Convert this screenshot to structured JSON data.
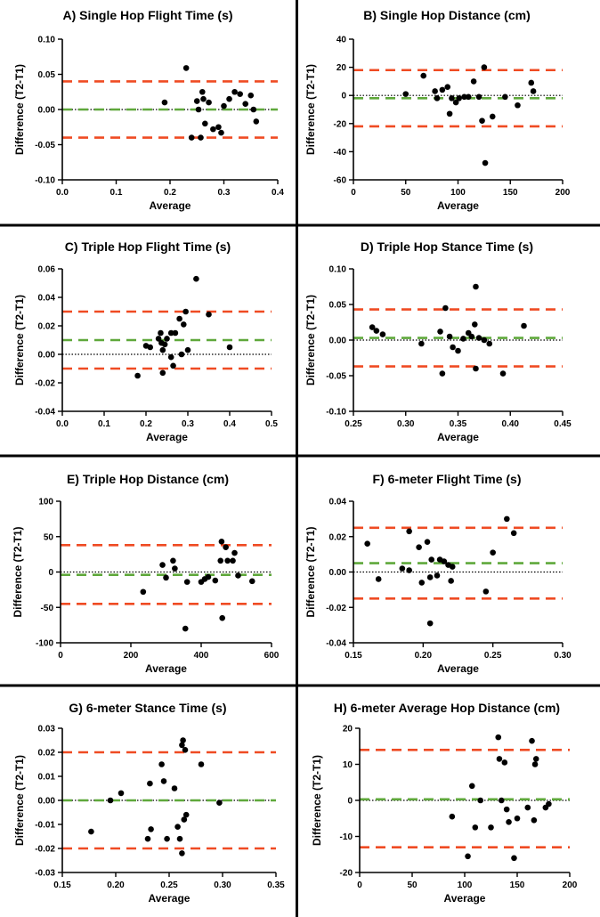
{
  "colors": {
    "limits": "#ef4b23",
    "bias": "#5fa83b",
    "zero": "#000000",
    "points": "#000000",
    "divider": "#000000"
  },
  "chart_data": [
    {
      "type": "scatter",
      "title": "A) Single Hop Flight Time (s)",
      "xlabel": "Average",
      "ylabel": "Difference (T2-T1)",
      "xlim": [
        0.0,
        0.4
      ],
      "ylim": [
        -0.1,
        0.1
      ],
      "xticks": [
        0.0,
        0.1,
        0.2,
        0.3,
        0.4
      ],
      "xtick_labels": [
        "0.0",
        "0.1",
        "0.2",
        "0.3",
        "0.4"
      ],
      "yticks": [
        -0.1,
        -0.05,
        0.0,
        0.05,
        0.1
      ],
      "ytick_labels": [
        "-0.10",
        "-0.05",
        "0.00",
        "0.05",
        "0.10"
      ],
      "bias": 0.0,
      "upper_loa": 0.04,
      "lower_loa": -0.04,
      "zero_line": true,
      "points": [
        [
          0.19,
          0.01
        ],
        [
          0.23,
          0.059
        ],
        [
          0.24,
          -0.04
        ],
        [
          0.25,
          0.012
        ],
        [
          0.253,
          0.0
        ],
        [
          0.257,
          -0.04
        ],
        [
          0.26,
          0.025
        ],
        [
          0.262,
          0.015
        ],
        [
          0.265,
          -0.02
        ],
        [
          0.272,
          0.01
        ],
        [
          0.28,
          -0.028
        ],
        [
          0.29,
          -0.025
        ],
        [
          0.295,
          -0.033
        ],
        [
          0.3,
          0.005
        ],
        [
          0.31,
          0.015
        ],
        [
          0.32,
          0.025
        ],
        [
          0.33,
          0.022
        ],
        [
          0.34,
          0.008
        ],
        [
          0.35,
          0.02
        ],
        [
          0.355,
          0.0
        ],
        [
          0.36,
          -0.017
        ]
      ]
    },
    {
      "type": "scatter",
      "title": "B) Single Hop Distance (cm)",
      "xlabel": "Average",
      "ylabel": "Difference (T2-T1)",
      "xlim": [
        0,
        200
      ],
      "ylim": [
        -60,
        40
      ],
      "xticks": [
        0,
        50,
        100,
        150,
        200
      ],
      "xtick_labels": [
        "0",
        "50",
        "100",
        "150",
        "200"
      ],
      "yticks": [
        -60,
        -40,
        -20,
        0,
        20,
        40
      ],
      "ytick_labels": [
        "-60",
        "-40",
        "-20",
        "0",
        "20",
        "40"
      ],
      "bias": -2,
      "upper_loa": 18,
      "lower_loa": -22,
      "zero_line": true,
      "points": [
        [
          50,
          1
        ],
        [
          67,
          14
        ],
        [
          78,
          3
        ],
        [
          80,
          -2
        ],
        [
          85,
          4
        ],
        [
          90,
          6
        ],
        [
          92,
          -13
        ],
        [
          94,
          -2
        ],
        [
          98,
          -5
        ],
        [
          101,
          -2
        ],
        [
          106,
          -1
        ],
        [
          110,
          -1
        ],
        [
          115,
          10
        ],
        [
          120,
          -1
        ],
        [
          123,
          -18
        ],
        [
          125,
          20
        ],
        [
          126,
          -48
        ],
        [
          133,
          -15
        ],
        [
          145,
          -1
        ],
        [
          157,
          -7
        ],
        [
          170,
          9
        ],
        [
          172,
          3
        ]
      ]
    },
    {
      "type": "scatter",
      "title": "C) Triple Hop Flight Time (s)",
      "xlabel": "Average",
      "ylabel": "Difference (T2-T1)",
      "xlim": [
        0.0,
        0.5
      ],
      "ylim": [
        -0.04,
        0.06
      ],
      "xticks": [
        0.0,
        0.1,
        0.2,
        0.3,
        0.4,
        0.5
      ],
      "xtick_labels": [
        "0.0",
        "0.1",
        "0.2",
        "0.3",
        "0.4",
        "0.5"
      ],
      "yticks": [
        -0.04,
        -0.02,
        0.0,
        0.02,
        0.04,
        0.06
      ],
      "ytick_labels": [
        "-0.04",
        "-0.02",
        "0.00",
        "0.02",
        "0.04",
        "0.06"
      ],
      "bias": 0.01,
      "upper_loa": 0.03,
      "lower_loa": -0.01,
      "zero_line": true,
      "points": [
        [
          0.18,
          -0.015
        ],
        [
          0.2,
          0.006
        ],
        [
          0.21,
          0.005
        ],
        [
          0.23,
          0.011
        ],
        [
          0.235,
          0.015
        ],
        [
          0.237,
          0.008
        ],
        [
          0.24,
          0.003
        ],
        [
          0.24,
          -0.013
        ],
        [
          0.245,
          0.007
        ],
        [
          0.25,
          0.011
        ],
        [
          0.26,
          0.015
        ],
        [
          0.26,
          -0.002
        ],
        [
          0.265,
          -0.008
        ],
        [
          0.27,
          0.015
        ],
        [
          0.28,
          0.025
        ],
        [
          0.285,
          0.0
        ],
        [
          0.29,
          0.021
        ],
        [
          0.295,
          0.03
        ],
        [
          0.3,
          0.003
        ],
        [
          0.32,
          0.053
        ],
        [
          0.35,
          0.028
        ],
        [
          0.4,
          0.005
        ]
      ]
    },
    {
      "type": "scatter",
      "title": "D) Triple Hop Stance Time (s)",
      "xlabel": "Average",
      "ylabel": "Difference (T2-T1)",
      "xlim": [
        0.25,
        0.45
      ],
      "ylim": [
        -0.1,
        0.1
      ],
      "xticks": [
        0.25,
        0.3,
        0.35,
        0.4,
        0.45
      ],
      "xtick_labels": [
        "0.25",
        "0.30",
        "0.35",
        "0.40",
        "0.45"
      ],
      "yticks": [
        -0.1,
        -0.05,
        0.0,
        0.05,
        0.1
      ],
      "ytick_labels": [
        "-0.10",
        "-0.05",
        "0.00",
        "0.05",
        "0.10"
      ],
      "bias": 0.003,
      "upper_loa": 0.043,
      "lower_loa": -0.037,
      "zero_line": true,
      "points": [
        [
          0.268,
          0.018
        ],
        [
          0.272,
          0.013
        ],
        [
          0.278,
          0.008
        ],
        [
          0.315,
          -0.005
        ],
        [
          0.333,
          0.012
        ],
        [
          0.335,
          -0.047
        ],
        [
          0.338,
          0.045
        ],
        [
          0.342,
          0.005
        ],
        [
          0.345,
          -0.01
        ],
        [
          0.35,
          -0.015
        ],
        [
          0.355,
          0.002
        ],
        [
          0.36,
          0.01
        ],
        [
          0.363,
          0.005
        ],
        [
          0.366,
          0.022
        ],
        [
          0.367,
          0.075
        ],
        [
          0.367,
          -0.04
        ],
        [
          0.37,
          0.003
        ],
        [
          0.375,
          0.0
        ],
        [
          0.38,
          -0.005
        ],
        [
          0.393,
          -0.047
        ],
        [
          0.413,
          0.02
        ]
      ]
    },
    {
      "type": "scatter",
      "title": "E) Triple Hop Distance (cm)",
      "xlabel": "Average",
      "ylabel": "Difference (T2-T1)",
      "xlim": [
        0,
        600
      ],
      "ylim": [
        -100,
        100
      ],
      "xticks": [
        0,
        200,
        400,
        600
      ],
      "xtick_labels": [
        "0",
        "200",
        "400",
        "600"
      ],
      "yticks": [
        -100,
        -50,
        0,
        50,
        100
      ],
      "ytick_labels": [
        "-100",
        "-50",
        "0",
        "50",
        "100"
      ],
      "bias": -4,
      "upper_loa": 38,
      "lower_loa": -45,
      "zero_line": true,
      "points": [
        [
          235,
          -28
        ],
        [
          290,
          10
        ],
        [
          300,
          -8
        ],
        [
          320,
          16
        ],
        [
          325,
          5
        ],
        [
          355,
          -80
        ],
        [
          360,
          -14
        ],
        [
          400,
          -14
        ],
        [
          410,
          -10
        ],
        [
          420,
          -7
        ],
        [
          440,
          -12
        ],
        [
          455,
          16
        ],
        [
          458,
          43
        ],
        [
          460,
          -65
        ],
        [
          470,
          35
        ],
        [
          475,
          16
        ],
        [
          490,
          16
        ],
        [
          495,
          27
        ],
        [
          505,
          -5
        ],
        [
          545,
          -13
        ]
      ]
    },
    {
      "type": "scatter",
      "title": "F) 6-meter Flight Time (s)",
      "xlabel": "Average",
      "ylabel": "Difference (T2-T1)",
      "xlim": [
        0.15,
        0.3
      ],
      "ylim": [
        -0.04,
        0.04
      ],
      "xticks": [
        0.15,
        0.2,
        0.25,
        0.3
      ],
      "xtick_labels": [
        "0.15",
        "0.20",
        "0.25",
        "0.30"
      ],
      "yticks": [
        -0.04,
        -0.02,
        0.0,
        0.02,
        0.04
      ],
      "ytick_labels": [
        "-0.04",
        "-0.02",
        "0.00",
        "0.02",
        "0.04"
      ],
      "bias": 0.005,
      "upper_loa": 0.025,
      "lower_loa": -0.015,
      "zero_line": true,
      "points": [
        [
          0.16,
          0.016
        ],
        [
          0.168,
          -0.004
        ],
        [
          0.185,
          0.002
        ],
        [
          0.19,
          0.023
        ],
        [
          0.19,
          0.001
        ],
        [
          0.197,
          0.014
        ],
        [
          0.199,
          -0.006
        ],
        [
          0.203,
          0.017
        ],
        [
          0.205,
          -0.003
        ],
        [
          0.205,
          -0.029
        ],
        [
          0.206,
          0.007
        ],
        [
          0.21,
          -0.002
        ],
        [
          0.212,
          0.007
        ],
        [
          0.215,
          0.006
        ],
        [
          0.218,
          0.004
        ],
        [
          0.22,
          -0.005
        ],
        [
          0.221,
          0.003
        ],
        [
          0.245,
          -0.011
        ],
        [
          0.25,
          0.011
        ],
        [
          0.26,
          0.03
        ],
        [
          0.265,
          0.022
        ]
      ]
    },
    {
      "type": "scatter",
      "title": "G) 6-meter Stance Time (s)",
      "xlabel": "Average",
      "ylabel": "Difference (T2-T1)",
      "xlim": [
        0.15,
        0.35
      ],
      "ylim": [
        -0.03,
        0.03
      ],
      "xticks": [
        0.15,
        0.2,
        0.25,
        0.3,
        0.35
      ],
      "xtick_labels": [
        "0.15",
        "0.20",
        "0.25",
        "0.30",
        "0.35"
      ],
      "yticks": [
        -0.03,
        -0.02,
        -0.01,
        0.0,
        0.01,
        0.02,
        0.03
      ],
      "ytick_labels": [
        "-0.03",
        "-0.02",
        "-0.01",
        "0.00",
        "0.01",
        "0.02",
        "0.03"
      ],
      "bias": 0.0,
      "upper_loa": 0.02,
      "lower_loa": -0.02,
      "zero_line": true,
      "points": [
        [
          0.177,
          -0.013
        ],
        [
          0.195,
          0.0
        ],
        [
          0.205,
          0.003
        ],
        [
          0.23,
          -0.016
        ],
        [
          0.232,
          0.007
        ],
        [
          0.233,
          -0.012
        ],
        [
          0.243,
          0.015
        ],
        [
          0.245,
          0.008
        ],
        [
          0.248,
          -0.016
        ],
        [
          0.255,
          0.005
        ],
        [
          0.258,
          -0.011
        ],
        [
          0.26,
          -0.016
        ],
        [
          0.262,
          -0.022
        ],
        [
          0.262,
          0.023
        ],
        [
          0.263,
          0.025
        ],
        [
          0.264,
          -0.008
        ],
        [
          0.265,
          0.021
        ],
        [
          0.266,
          -0.006
        ],
        [
          0.28,
          0.015
        ],
        [
          0.297,
          -0.001
        ]
      ]
    },
    {
      "type": "scatter",
      "title": "H) 6-meter Average Hop Distance (cm)",
      "xlabel": "Average",
      "ylabel": "Difference (T2-T1)",
      "xlim": [
        0,
        200
      ],
      "ylim": [
        -20,
        20
      ],
      "xticks": [
        0,
        50,
        100,
        150,
        200
      ],
      "xtick_labels": [
        "0",
        "50",
        "100",
        "150",
        "200"
      ],
      "yticks": [
        -20,
        -10,
        0,
        10,
        20
      ],
      "ytick_labels": [
        "-20",
        "-10",
        "0",
        "10",
        "20"
      ],
      "bias": 0.3,
      "upper_loa": 14,
      "lower_loa": -13,
      "zero_line": true,
      "points": [
        [
          88,
          -4.5
        ],
        [
          103,
          -15.5
        ],
        [
          107,
          4
        ],
        [
          110,
          -7.5
        ],
        [
          115,
          0
        ],
        [
          125,
          -7.5
        ],
        [
          132,
          17.5
        ],
        [
          133,
          11.5
        ],
        [
          135,
          0
        ],
        [
          138,
          10.5
        ],
        [
          140,
          -2.5
        ],
        [
          142,
          -6
        ],
        [
          147,
          -16
        ],
        [
          150,
          -5
        ],
        [
          160,
          -2
        ],
        [
          164,
          16.5
        ],
        [
          166,
          -5.5
        ],
        [
          167,
          10
        ],
        [
          168,
          11.5
        ],
        [
          177,
          -2
        ],
        [
          180,
          -1
        ]
      ]
    }
  ]
}
